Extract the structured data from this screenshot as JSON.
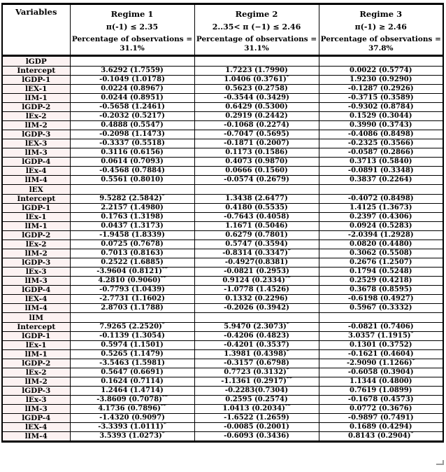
{
  "colors": {
    "border": "#000000",
    "text": "#000000",
    "variable_column_bg": "#fcf2f2",
    "page_bg": "#ffffff"
  },
  "table": {
    "corner_label": "Variables",
    "regimes": [
      {
        "name": "Regime 1",
        "condition": "π(-1) ≤ 2.35",
        "obs_label": "Percentage of observations =",
        "obs_value": "31.1%"
      },
      {
        "name": "Regime 2",
        "condition": "2..35< π (−1) ≤ 2.46",
        "obs_label": "Percentage of observations =",
        "obs_value": "31.1%"
      },
      {
        "name": "Regime 3",
        "condition": "π(-1) ≥ 2.46",
        "obs_label": "Percentage of observations =",
        "obs_value": "37.8%"
      }
    ],
    "sections": [
      {
        "title": "lGDP",
        "rows": [
          {
            "label": "Intercept",
            "cells": [
              "3.6292 (1.7559)",
              "1.7223 (1.7990)",
              "0.0022 (0.5774)"
            ]
          },
          {
            "label": "lGDP-1",
            "cells": [
              "-0.1049 (1.0178)",
              "1.0406 (0.3761)*",
              "1.9230 (0.9290)"
            ]
          },
          {
            "label": "lEX-1",
            "cells": [
              "0.0224 (0.8967)",
              "0.5623 (0.2758)",
              "-0.1287 (0.2926)"
            ]
          },
          {
            "label": "lIM-1",
            "cells": [
              "0.0244 (0.8951)",
              "-0.3544 (0.3429)",
              "-0.3715 (0.3589)"
            ]
          },
          {
            "label": "lGDP-2",
            "cells": [
              "-0.5658 (1.2461)",
              "0.6429 (0.5300)",
              "-0.9302 (0.8784)"
            ]
          },
          {
            "label": "lEx-2",
            "cells": [
              "-0.2032 (0.5217)",
              "0.2919 (0.2442)",
              "0.1529 (0.3044)"
            ]
          },
          {
            "label": "lIM-2",
            "cells": [
              "0.4888 (0.5547)",
              "-0.1068 (0.2274)",
              "0.3990 (0.3743)"
            ]
          },
          {
            "label": "lGDP-3",
            "cells": [
              "-0.2098 (1.1473)",
              "-0.7047 (0.5695)",
              "-0.4086 (0.8498)"
            ]
          },
          {
            "label": "lEX-3",
            "cells": [
              "-0.3337 (0.5518)",
              "-0.1871 (0.2007)",
              "-0.2325 (0.3566)"
            ]
          },
          {
            "label": "lIM-3",
            "cells": [
              "0.3116 (0.6156)",
              "0.1173 (0.1586)",
              "-0.0587 (0.2866)"
            ]
          },
          {
            "label": "lGDP-4",
            "cells": [
              "0.0614 (0.7093)",
              "0.4073 (0.9870)",
              "0.3713 (0.5840)"
            ]
          },
          {
            "label": "lEx-4",
            "cells": [
              "-0.4568 (0.7884)",
              "0.0666 (0.1560)",
              "-0.0891 (0.3348)"
            ]
          },
          {
            "label": "lIM-4",
            "cells": [
              "0.5561 (0.8010)",
              "-0.0574 (0.2679)",
              "0.3837 (0.2264)"
            ]
          }
        ]
      },
      {
        "title": "lEX",
        "rows": [
          {
            "label": "Intercept",
            "cells": [
              "9.5282 (2.5842)*",
              "1.3438 (2.6477)",
              "-0.4072 (0.8498)"
            ]
          },
          {
            "label": "lGDP-1",
            "cells": [
              "2.2157 (1.4980)",
              "0.4180 (0.5535)",
              "1.4125 (1.3673)"
            ]
          },
          {
            "label": "lEx-1",
            "cells": [
              "0.1763 (1.3198)",
              "-0.7643 (0.4058)",
              "0.2397 (0.4306)"
            ]
          },
          {
            "label": "lIM-1",
            "cells": [
              "0.0437 (1.3173)",
              "1.1671 (0.5046)",
              "0.0924 (0.5283)"
            ]
          },
          {
            "label": "lGDP-2",
            "cells": [
              "-1.9458 (1.8339)",
              "0.6279 (0.7801)",
              "-2.0394 (1.2928)"
            ]
          },
          {
            "label": "lEx-2",
            "cells": [
              "0.0725 (0.7678)",
              "0.5747 (0.3594)",
              "0.0820 (0.4480)"
            ]
          },
          {
            "label": "lIM-2",
            "cells": [
              "0.7013 (0.8163)",
              "-0.8314 (0.3347)*",
              "0.3062 (0.5508)"
            ]
          },
          {
            "label": "lGDP-3",
            "cells": [
              "0.2522 (1.6885)",
              "-0.4927(0.8381)",
              "0.2676 (1.2507)"
            ]
          },
          {
            "label": "lEx-3",
            "cells": [
              "-3.9604 (0.8121)**",
              "-0.0821 (0.2953)",
              "0.1794 (0.5248)"
            ]
          },
          {
            "label": "lIM-3",
            "cells": [
              "4.2810 (0.9060)**",
              "0.9124 (0.2334)**",
              "0.2529 (0.4218)"
            ]
          },
          {
            "label": "lGDP-4",
            "cells": [
              "-0.7793 (1.0439)",
              "-1.0778 (1.4526)",
              "0.3678 (0.8595)"
            ]
          },
          {
            "label": "lEX-4",
            "cells": [
              "-2.7731 (1.1602)",
              "0.1332 (0.2296)",
              "-0.6198 (0.4927)"
            ]
          },
          {
            "label": "lIM-4",
            "cells": [
              "2.8703 (1.1788)",
              "-0.2026 (0.3942)",
              "0.5967 (0.3332)"
            ]
          }
        ]
      },
      {
        "title": "lIM",
        "rows": [
          {
            "label": "Intercept",
            "cells": [
              "7.9265 (2.2520)*",
              "5.9470 (2.3073)*",
              "-0.0821 (0.7406)"
            ]
          },
          {
            "label": "lGDP-1",
            "cells": [
              "-0.1139 (1.3054)",
              "-0.4206 (0.4823)",
              "3.0357 (1.1915)*"
            ]
          },
          {
            "label": "lEx-1",
            "cells": [
              "0.5974 (1.1501)",
              "-0.4201 (0.3537)",
              "0.1301 (0.3752)"
            ]
          },
          {
            "label": "lIM-1",
            "cells": [
              "0.5265 (1.1479)",
              "1.3981 (0.4398)*",
              "-0.1621 (0.4604)"
            ]
          },
          {
            "label": "lGDP-2",
            "cells": [
              "-3.5463 (1.5981)",
              "-0.3157 (0.6798)",
              "-2.9090 (1.1266)*"
            ]
          },
          {
            "label": "lEx-2",
            "cells": [
              "0.5647 (0.6691)",
              "0.7723 (0.3132)*",
              "-0.6058 (0.3904)"
            ]
          },
          {
            "label": "lIM-2",
            "cells": [
              "0.1624 (0.7114)",
              "-1.1361 (0.2917)**",
              "1.1344 (0.4800)"
            ]
          },
          {
            "label": "lGDP-3",
            "cells": [
              "1.2464 (1.4714)",
              "-0.2283(0.7304)",
              "0.7619 (1.0899)"
            ]
          },
          {
            "label": "lEx-3",
            "cells": [
              "-3.8609 (0.7078)**",
              "0.2595 (0.2574)",
              "-0.1678 (0.4573)"
            ]
          },
          {
            "label": "lIM-3",
            "cells": [
              "4.1736 (0.7896)**",
              "1.0413 (0.2034)**",
              "0.0772 (0.3676)"
            ]
          },
          {
            "label": "lGDP-4",
            "cells": [
              "-1.4320 (0.9097)",
              "-1.6522 (1.2659)",
              "-0.9897 (0.7491)"
            ]
          },
          {
            "label": "lEX-4",
            "cells": [
              "-3.3393 (1.0111)*",
              "-0.0085 (0.2001)",
              "0.1689 (0.4294)"
            ]
          },
          {
            "label": "lIM-4",
            "cells": [
              "3.5393 (1.0273)*",
              "-0.6093 (0.3436)",
              "0.8143 (0.2904)*"
            ]
          }
        ]
      }
    ]
  }
}
